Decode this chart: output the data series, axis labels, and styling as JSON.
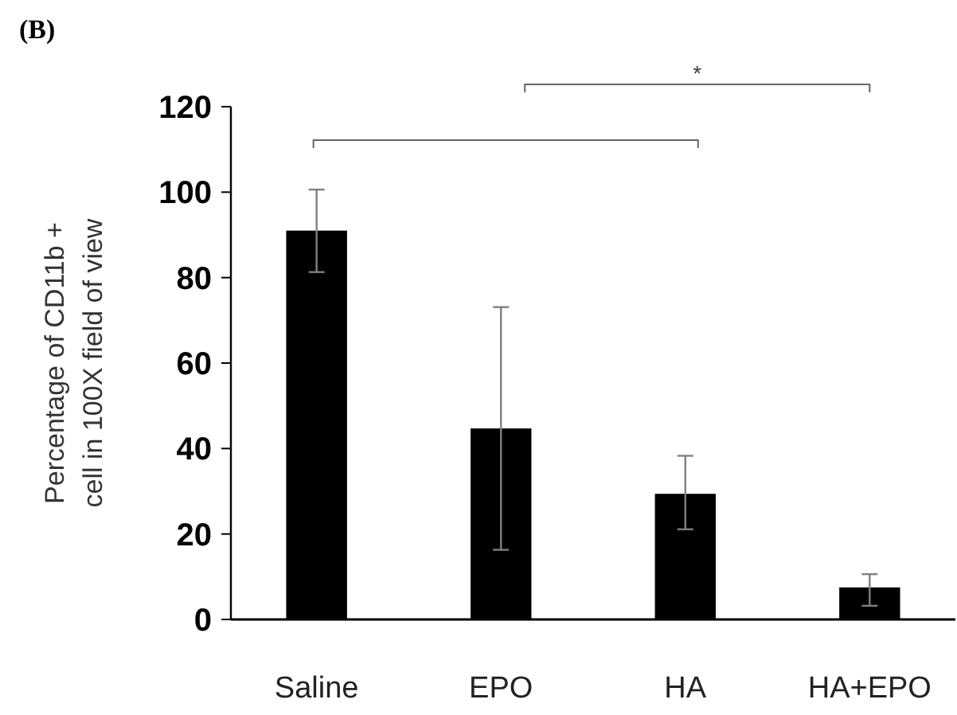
{
  "chart_data": {
    "type": "bar",
    "title": "(B)",
    "ylabel": "Percentage of CD11b +\ncell in 100X field of view",
    "categories": [
      "Saline",
      "EPO",
      "HA",
      "HA+EPO"
    ],
    "values": [
      91,
      44.7,
      29.4,
      7.5
    ],
    "errors": [
      [
        81.3,
        100.6
      ],
      [
        16.3,
        73.1
      ],
      [
        21.1,
        38.3
      ],
      [
        3.2,
        10.6
      ]
    ],
    "color": "#000000",
    "ylim": [
      0,
      120
    ],
    "yticks": [
      0,
      20,
      40,
      60,
      80,
      100,
      120
    ],
    "annotations": [
      "*"
    ]
  }
}
